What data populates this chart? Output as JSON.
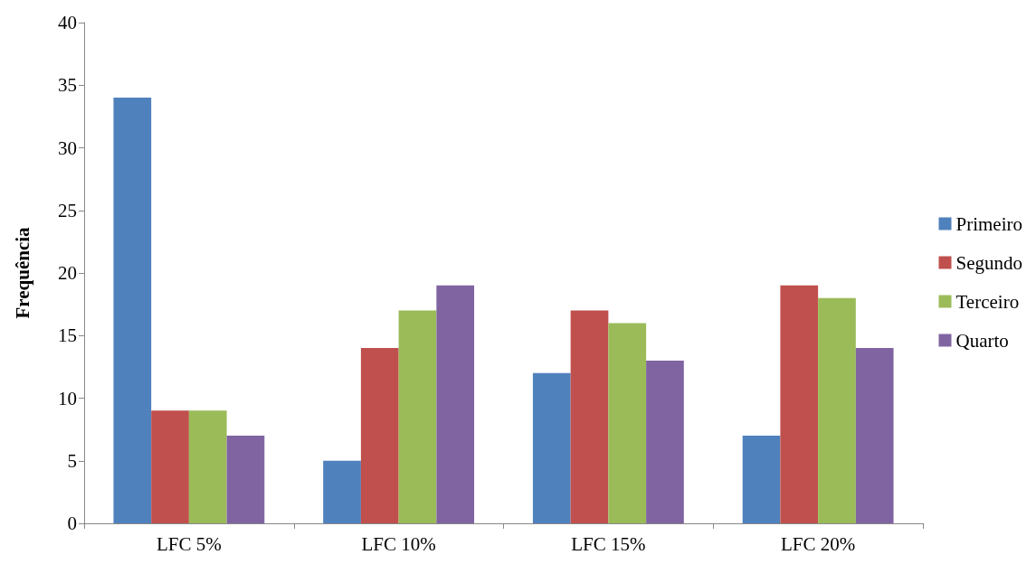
{
  "chart_data": {
    "type": "bar",
    "ylabel": "Frequência",
    "categories": [
      "LFC 5%",
      "LFC 10%",
      "LFC 15%",
      "LFC 20%"
    ],
    "series": [
      {
        "name": "Primeiro",
        "color": "#4f81bd",
        "values": [
          34,
          5,
          12,
          7
        ]
      },
      {
        "name": "Segundo",
        "color": "#c0504d",
        "values": [
          9,
          14,
          17,
          19
        ]
      },
      {
        "name": "Terceiro",
        "color": "#9bbb59",
        "values": [
          9,
          17,
          16,
          18
        ]
      },
      {
        "name": "Quarto",
        "color": "#8064a2",
        "values": [
          7,
          19,
          13,
          14
        ]
      }
    ],
    "ylim": [
      0,
      40
    ],
    "yticks": [
      0,
      5,
      10,
      15,
      20,
      25,
      30,
      35,
      40
    ],
    "grid": false,
    "legend": "right"
  }
}
